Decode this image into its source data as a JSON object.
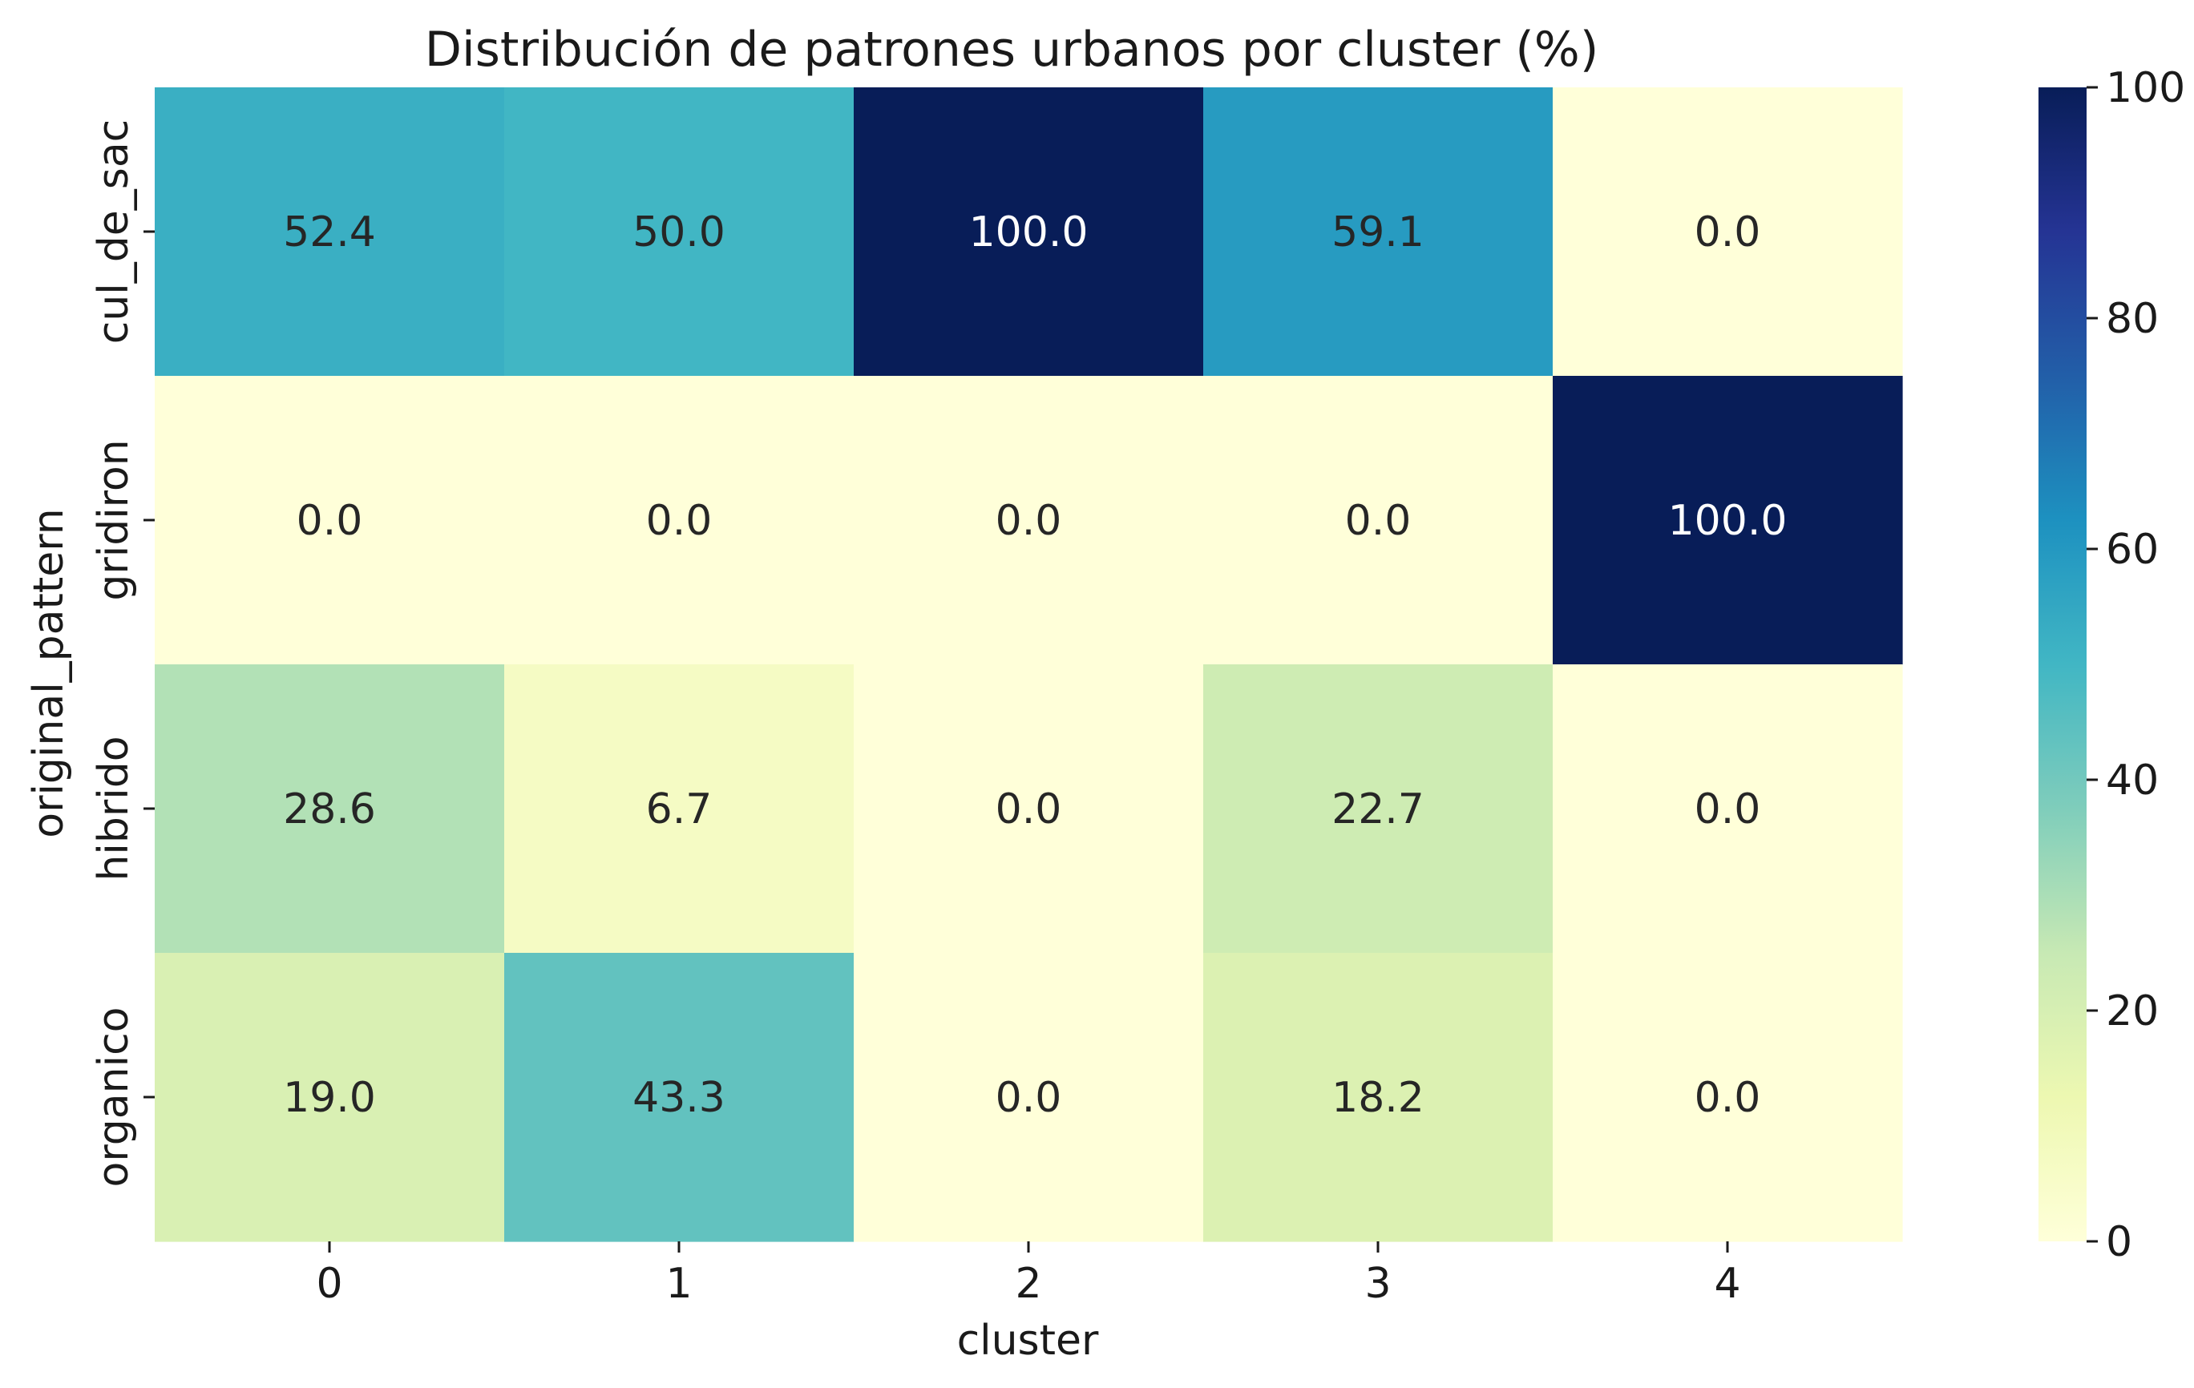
{
  "chart_data": {
    "type": "heatmap",
    "title": "Distribución de patrones urbanos por cluster (%)",
    "xlabel": "cluster",
    "ylabel": "original_pattern",
    "x_categories": [
      "0",
      "1",
      "2",
      "3",
      "4"
    ],
    "y_categories": [
      "cul_de_sac",
      "gridiron",
      "hibrido",
      "organico"
    ],
    "values": [
      [
        52.4,
        50.0,
        100.0,
        59.1,
        0.0
      ],
      [
        0.0,
        0.0,
        0.0,
        0.0,
        100.0
      ],
      [
        28.6,
        6.7,
        0.0,
        22.7,
        0.0
      ],
      [
        19.0,
        43.3,
        0.0,
        18.2,
        0.0
      ]
    ],
    "value_format": "0.0",
    "colormap": "YlGnBu",
    "colormap_stops": [
      "#ffffd9",
      "#edf8b1",
      "#c7e9b4",
      "#7fcdbb",
      "#41b6c4",
      "#1d91c0",
      "#225ea8",
      "#253494",
      "#081d58"
    ],
    "vmin": 0,
    "vmax": 100,
    "colorbar_ticks": [
      0,
      20,
      40,
      60,
      80,
      100
    ],
    "label_text_colors": {
      "dark": "#262626",
      "light": "#ffffff"
    }
  }
}
